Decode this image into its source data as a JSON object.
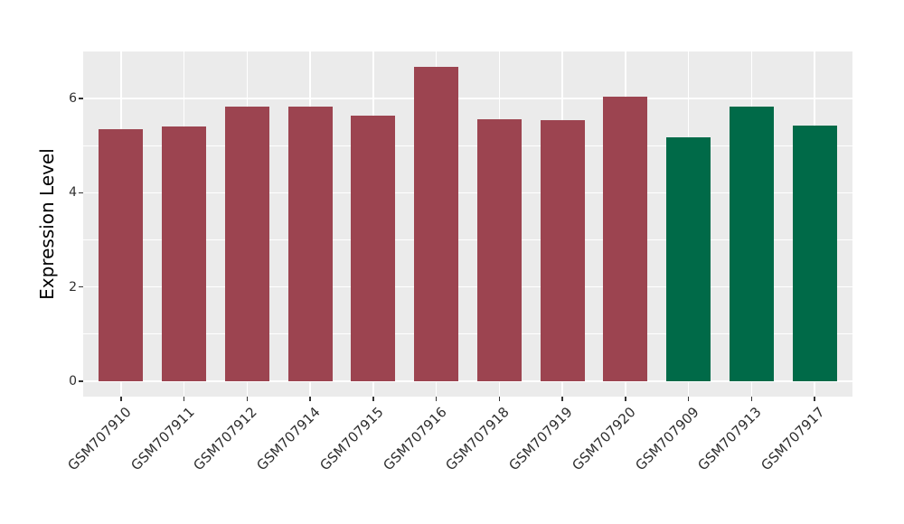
{
  "figure": {
    "background": "#FFFFFF",
    "panel_background": "#EBEBEB",
    "grid_color": "#FFFFFF",
    "tick_color": "#333333",
    "axis_text_color": "#2E2E2E",
    "axis_title_color": "#000000"
  },
  "chart_data": {
    "type": "bar",
    "title": "",
    "xlabel": "",
    "ylabel": "Expression Level",
    "categories": [
      "GSM707910",
      "GSM707911",
      "GSM707912",
      "GSM707914",
      "GSM707915",
      "GSM707916",
      "GSM707918",
      "GSM707919",
      "GSM707920",
      "GSM707909",
      "GSM707913",
      "GSM707917"
    ],
    "values": [
      5.35,
      5.41,
      5.83,
      5.82,
      5.64,
      6.68,
      5.56,
      5.54,
      6.05,
      5.18,
      5.82,
      5.42
    ],
    "bar_colors": [
      "#9C4450",
      "#9C4450",
      "#9C4450",
      "#9C4450",
      "#9C4450",
      "#9C4450",
      "#9C4450",
      "#9C4450",
      "#9C4450",
      "#006A48",
      "#006A48",
      "#006A48"
    ],
    "groups": [
      {
        "name": "group-maroon",
        "color": "#9C4450",
        "count": 9
      },
      {
        "name": "group-green",
        "color": "#006A48",
        "count": 3
      }
    ],
    "ylim": [
      -0.33,
      7.0
    ],
    "yticks": [
      0,
      2,
      4,
      6
    ],
    "yticks_minor": [
      1,
      3,
      5
    ],
    "x_tick_angle_deg": 45,
    "bar_width_fraction": 0.7,
    "grid": "horizontal major+minor, vertical major at category centers",
    "legend": "none"
  }
}
